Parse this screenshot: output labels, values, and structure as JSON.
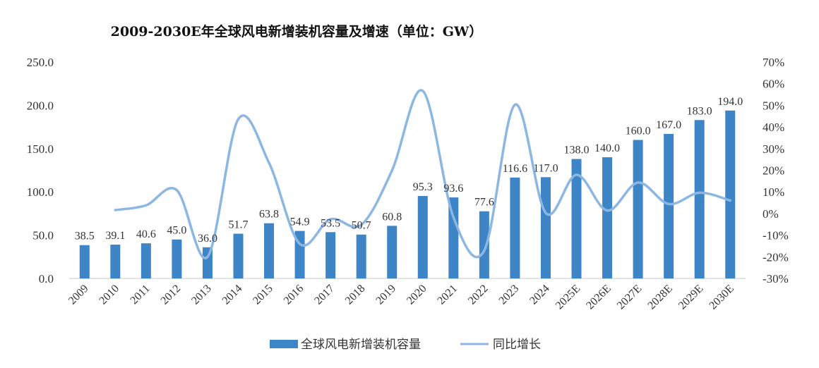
{
  "chart_data": {
    "type": "bar+line",
    "title": "2009-2030E年全球风电新增装机容量及增速（单位：GW）",
    "categories": [
      "2009",
      "2010",
      "2011",
      "2012",
      "2013",
      "2014",
      "2015",
      "2016",
      "2017",
      "2018",
      "2019",
      "2020",
      "2021",
      "2022",
      "2023",
      "2024",
      "2025E",
      "2026E",
      "2027E",
      "2028E",
      "2029E",
      "2030E"
    ],
    "bar_labels": [
      "38.5",
      "39.1",
      "40.6",
      "45.0",
      "36.0",
      "51.7",
      "63.8",
      "54.9",
      "53.5",
      "50.7",
      "60.8",
      "95.3",
      "93.6",
      "77.6",
      "116.6",
      "117.0",
      "138.0",
      "140.0",
      "160.0",
      "167.0",
      "183.0",
      "194.0"
    ],
    "series": [
      {
        "name": "全球风电新增装机容量",
        "type": "bar",
        "axis": "left",
        "color": "#3d85c6",
        "values": [
          38.5,
          39.1,
          40.6,
          45.0,
          36.0,
          51.7,
          63.8,
          54.9,
          53.5,
          50.7,
          60.8,
          95.3,
          93.6,
          77.6,
          116.6,
          117.0,
          138.0,
          140.0,
          160.0,
          167.0,
          183.0,
          194.0
        ]
      },
      {
        "name": "同比增长",
        "type": "line",
        "axis": "right",
        "color": "#8db7e3",
        "values": [
          null,
          1.6,
          3.8,
          10.8,
          -20.0,
          43.6,
          23.4,
          -14.0,
          -2.6,
          -5.2,
          19.9,
          56.7,
          -1.8,
          -17.1,
          50.3,
          0.3,
          17.9,
          1.4,
          14.3,
          4.4,
          9.6,
          6.0
        ]
      }
    ],
    "left_axis": {
      "ylim": [
        0,
        250
      ],
      "ticks": [
        "0.0",
        "50.0",
        "100.0",
        "150.0",
        "200.0",
        "250.0"
      ]
    },
    "right_axis": {
      "ylim": [
        -30,
        70
      ],
      "ticks": [
        "-30%",
        "-20%",
        "-10%",
        "0%",
        "10%",
        "20%",
        "30%",
        "40%",
        "50%",
        "60%",
        "70%"
      ]
    },
    "legend": {
      "position": "bottom",
      "items": [
        "全球风电新增装机容量",
        "同比增长"
      ]
    },
    "grid": false
  }
}
